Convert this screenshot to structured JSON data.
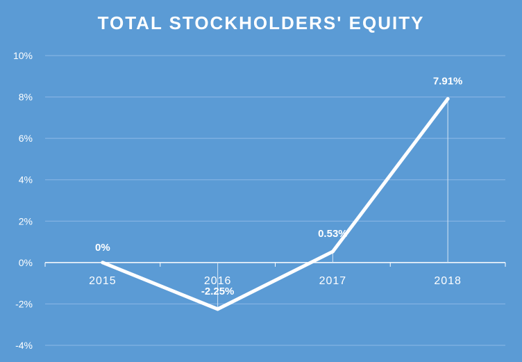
{
  "chart_data": {
    "type": "line",
    "title": "TOTAL STOCKHOLDERS' EQUITY",
    "categories": [
      "2015",
      "2016",
      "2017",
      "2018"
    ],
    "series": [
      {
        "values": [
          0,
          -2.25,
          0.53,
          7.91
        ]
      }
    ],
    "data_labels": [
      "0%",
      "-2.25%",
      "0.53%",
      "7.91%"
    ],
    "y_ticks": [
      "10%",
      "8%",
      "6%",
      "4%",
      "2%",
      "0%",
      "-2%",
      "-4%"
    ],
    "ylim": [
      -4,
      10
    ],
    "y_tick_step": 2,
    "grid": true,
    "drop_lines": true,
    "legend": "none",
    "colors": {
      "background": "#5b9bd5",
      "line": "#ffffff",
      "grid": "#8db8e6",
      "text": "#ffffff"
    }
  }
}
